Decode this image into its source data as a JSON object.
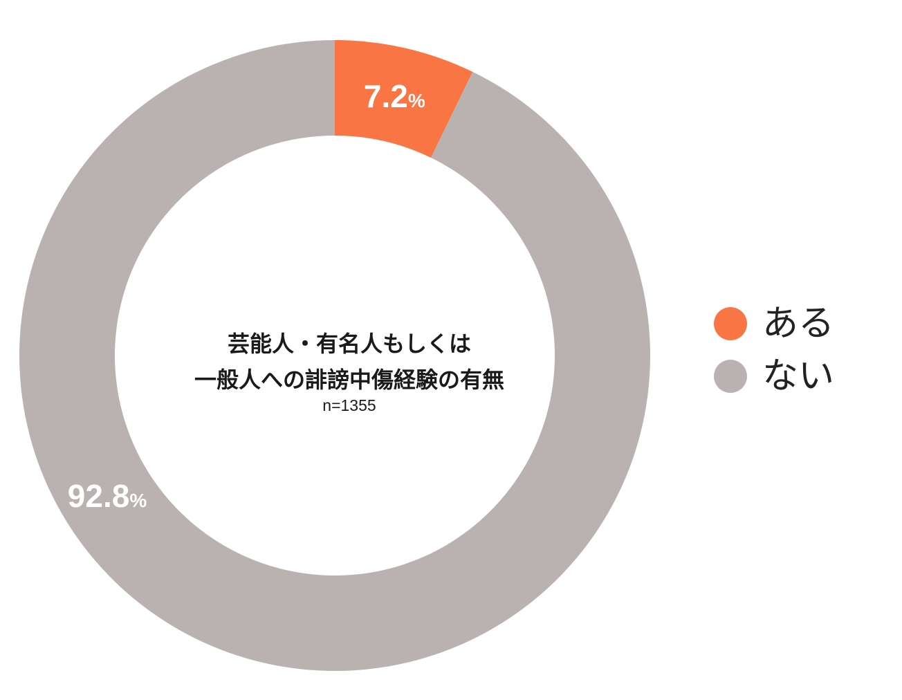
{
  "chart_data": {
    "type": "pie",
    "donut": true,
    "title_lines": [
      "芸能人・有名人もしくは",
      "一般人への誹謗中傷経験の有無"
    ],
    "subtitle": "n=1355",
    "slices": [
      {
        "name": "ある",
        "value": 7.2,
        "value_label": "7.2",
        "unit": "%",
        "color": "#f97543"
      },
      {
        "name": "ない",
        "value": 92.8,
        "value_label": "92.8",
        "unit": "%",
        "color": "#bab2b0"
      }
    ],
    "legend_position": "right"
  }
}
